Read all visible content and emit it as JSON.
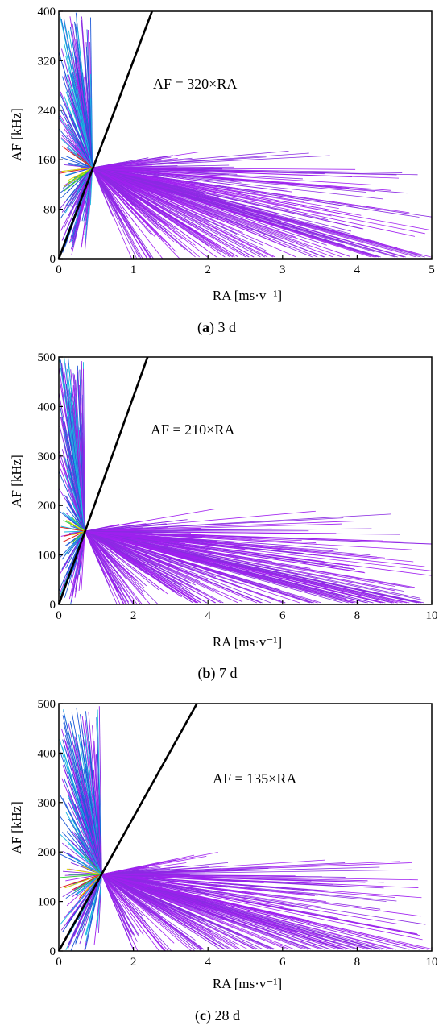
{
  "colors": {
    "axis": "#000000",
    "fit_line": "#000000",
    "cluster_magenta": "#a020f0",
    "cluster_violet": "#8a2be2",
    "cluster_blue": "#1e5ad8",
    "cluster_cyan": "#18b8e0",
    "cluster_green": "#3ad23a",
    "cluster_yellow": "#e0e000",
    "cluster_red": "#e02020"
  },
  "chart_data": [
    {
      "id": "a",
      "type": "line",
      "caption_letter": "a",
      "caption_rest": " 3 d",
      "xlabel": "RA [ms·v⁻¹]",
      "ylabel": "AF [kHz]",
      "xlim": [
        0,
        5
      ],
      "ylim": [
        0,
        400
      ],
      "xticks": [
        0,
        1,
        2,
        3,
        4,
        5
      ],
      "yticks": [
        0,
        80,
        160,
        240,
        320,
        400
      ],
      "fit": {
        "label": "AF = 320×RA",
        "slope": 320
      },
      "hub": [
        0.45,
        147
      ],
      "grid": false
    },
    {
      "id": "b",
      "type": "line",
      "caption_letter": "b",
      "caption_rest": " 7 d",
      "xlabel": "RA [ms·v⁻¹]",
      "ylabel": "AF [kHz]",
      "xlim": [
        0,
        10
      ],
      "ylim": [
        0,
        500
      ],
      "xticks": [
        0,
        2,
        4,
        6,
        8,
        10
      ],
      "yticks": [
        0,
        100,
        200,
        300,
        400,
        500
      ],
      "fit": {
        "label": "AF = 210×RA",
        "slope": 210
      },
      "hub": [
        0.7,
        148
      ],
      "grid": false
    },
    {
      "id": "c",
      "type": "line",
      "caption_letter": "c",
      "caption_rest": " 28 d",
      "xlabel": "RA [ms·v⁻¹]",
      "ylabel": "AF [kHz]",
      "xlim": [
        0,
        10
      ],
      "ylim": [
        0,
        500
      ],
      "xticks": [
        0,
        2,
        4,
        6,
        8,
        10
      ],
      "yticks": [
        0,
        100,
        200,
        300,
        400,
        500
      ],
      "fit": {
        "label": "AF = 135×RA",
        "slope": 135
      },
      "hub": [
        1.15,
        155
      ],
      "grid": false
    }
  ]
}
